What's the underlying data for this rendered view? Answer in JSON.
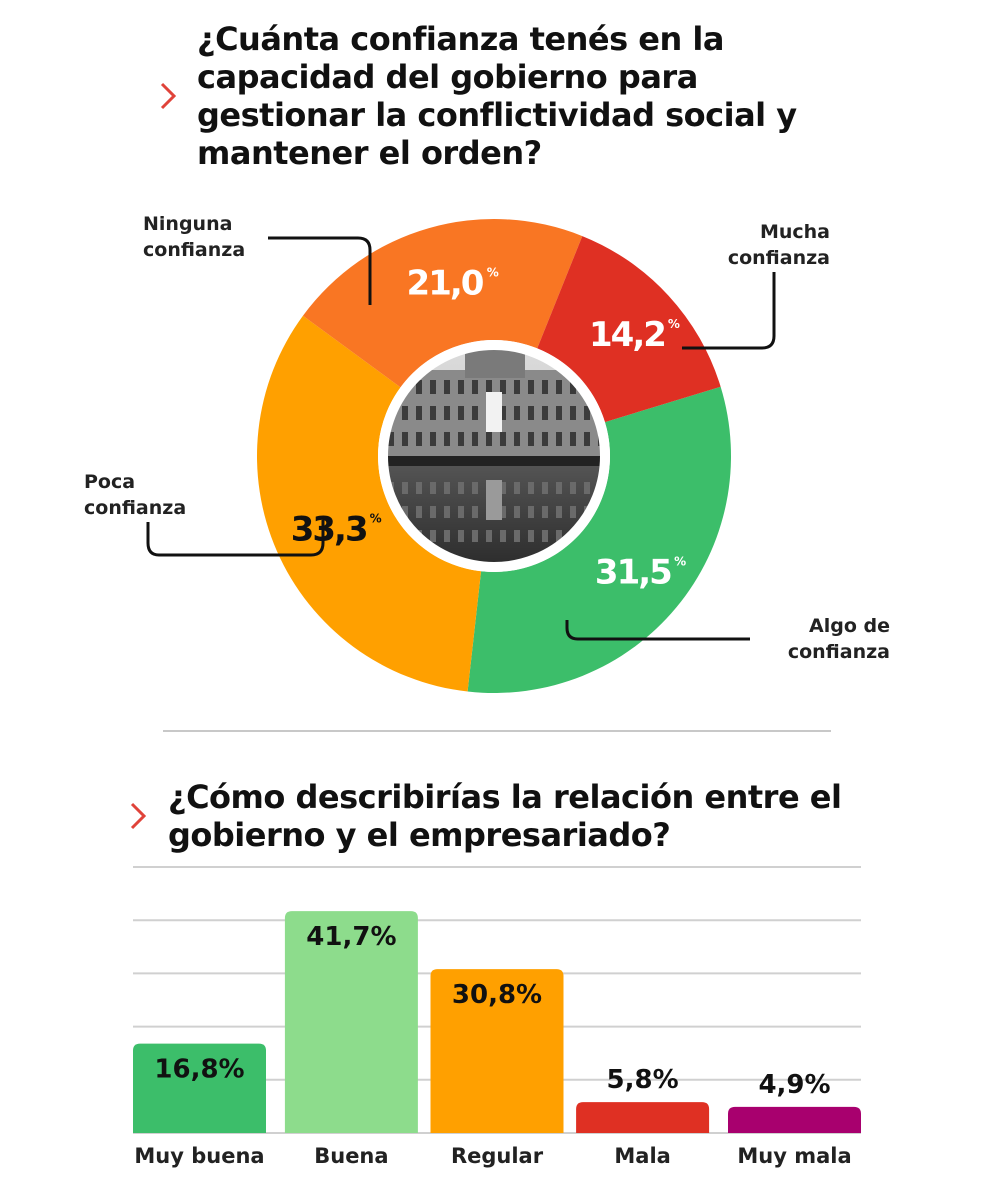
{
  "q1": {
    "title": "¿Cuánta confianza tenés en la capacidad del gobierno para gestionar la conflictividad social y mantener el orden?"
  },
  "q2": {
    "title": "¿Cómo describirías la relación entre el gobierno y el empresariado?"
  },
  "colors": {
    "accent_chevron": "#e0433a",
    "mucha": "#3cbe6a",
    "algo": "#ffa000",
    "poca": "#f97623",
    "ninguna": "#df3023",
    "muy_buena": "#3cbe6a",
    "buena": "#8ddc8c",
    "regular": "#ffa000",
    "mala": "#df3023",
    "muy_mala": "#a8006e"
  },
  "chart_data": [
    {
      "type": "pie",
      "variant": "donut",
      "center_image": "photo of Casa Rosada reflected in water (grayscale)",
      "percent_symbol": "%",
      "slices": [
        {
          "key": "mucha",
          "label_lines": [
            "Mucha",
            "confianza"
          ],
          "value": 31.5,
          "value_label": "31,5",
          "color": "#3cbe6a"
        },
        {
          "key": "algo",
          "label_lines": [
            "Algo de",
            "confianza"
          ],
          "value": 33.3,
          "value_label": "33,3",
          "color": "#ffa000"
        },
        {
          "key": "poca",
          "label_lines": [
            "Poca",
            "confianza"
          ],
          "value": 21.0,
          "value_label": "21,0",
          "color": "#f97623"
        },
        {
          "key": "ninguna",
          "label_lines": [
            "Ninguna",
            "confianza"
          ],
          "value": 14.2,
          "value_label": "14,2",
          "color": "#df3023"
        }
      ]
    },
    {
      "type": "bar",
      "categories": [
        "Muy buena",
        "Buena",
        "Regular",
        "Mala",
        "Muy mala"
      ],
      "values": [
        16.8,
        41.7,
        30.8,
        5.8,
        4.9
      ],
      "value_labels": [
        "16,8%",
        "41,7%",
        "30,8%",
        "5,8%",
        "4,9%"
      ],
      "colors": [
        "#3cbe6a",
        "#8ddc8c",
        "#ffa000",
        "#df3023",
        "#a8006e"
      ],
      "ylim": [
        0,
        50
      ],
      "grid": true
    }
  ]
}
